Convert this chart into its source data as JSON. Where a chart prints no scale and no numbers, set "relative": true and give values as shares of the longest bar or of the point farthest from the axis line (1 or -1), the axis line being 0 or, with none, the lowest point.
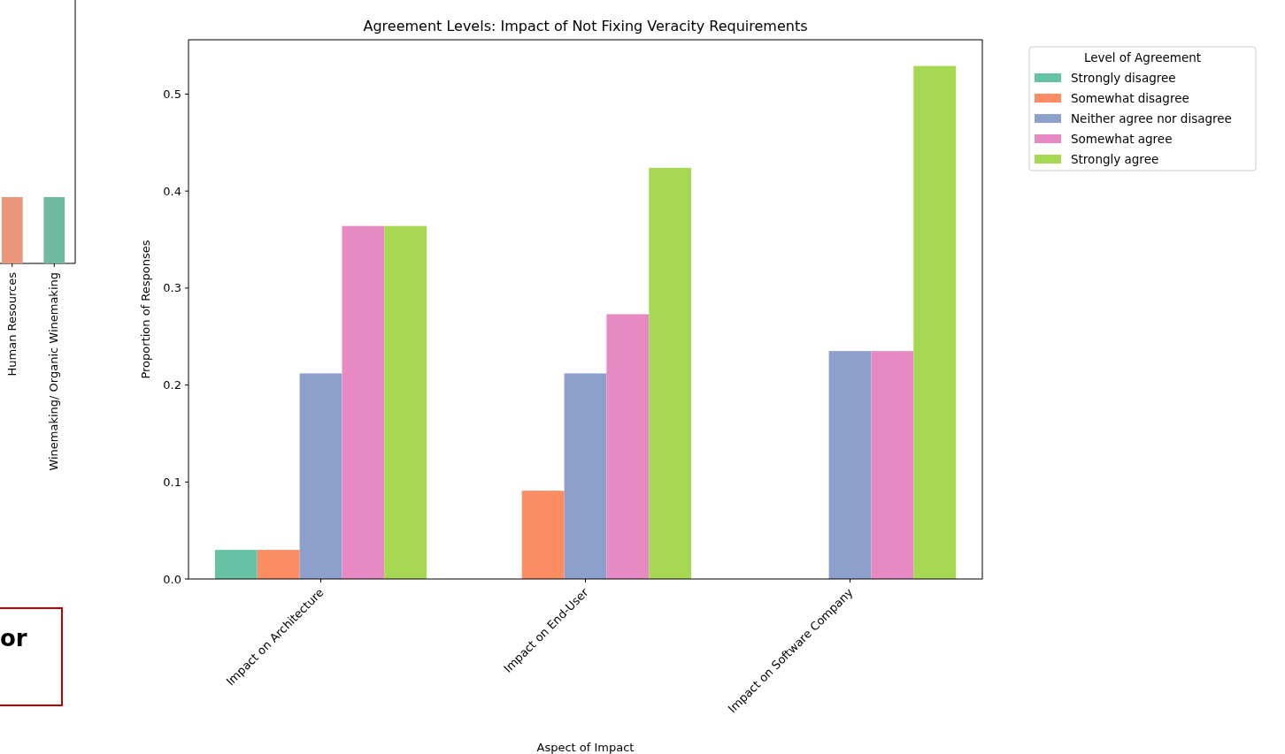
{
  "chart_data": [
    {
      "type": "bar",
      "relative": true,
      "categories": [
        "Human Resources",
        "Winemaking/ Organic Winemaking"
      ],
      "values": [
        1,
        1
      ],
      "colors": [
        "#e9967a",
        "#6fb9a3"
      ],
      "annotations": [
        "or"
      ]
    },
    {
      "type": "bar",
      "title": "Agreement Levels: Impact of Not Fixing Veracity Requirements",
      "xlabel": "Aspect of Impact",
      "ylabel": "Proportion of Responses",
      "categories": [
        "Impact on Architecture",
        "Impact on End-User",
        "Impact on Software Company"
      ],
      "series": [
        {
          "name": "Strongly disagree",
          "color": "#66c2a5",
          "values": [
            0.03,
            0,
            0
          ]
        },
        {
          "name": "Somewhat disagree",
          "color": "#fc8d62",
          "values": [
            0.03,
            0.091,
            0
          ]
        },
        {
          "name": "Neither agree nor disagree",
          "color": "#8da0cb",
          "values": [
            0.212,
            0.212,
            0.235
          ]
        },
        {
          "name": "Somewhat agree",
          "color": "#e78ac3",
          "values": [
            0.364,
            0.273,
            0.235
          ]
        },
        {
          "name": "Strongly agree",
          "color": "#a6d854",
          "values": [
            0.364,
            0.424,
            0.529
          ]
        }
      ],
      "ylim": [
        0,
        0.556
      ],
      "yticks": [
        {
          "value": 0,
          "label": "0.0"
        },
        {
          "value": 0.1,
          "label": "0.1"
        },
        {
          "value": 0.2,
          "label": "0.2"
        },
        {
          "value": 0.3,
          "label": "0.3"
        },
        {
          "value": 0.4,
          "label": "0.4"
        },
        {
          "value": 0.5,
          "label": "0.5"
        }
      ],
      "legend": "right",
      "legend_title": "Level of Agreement"
    }
  ]
}
